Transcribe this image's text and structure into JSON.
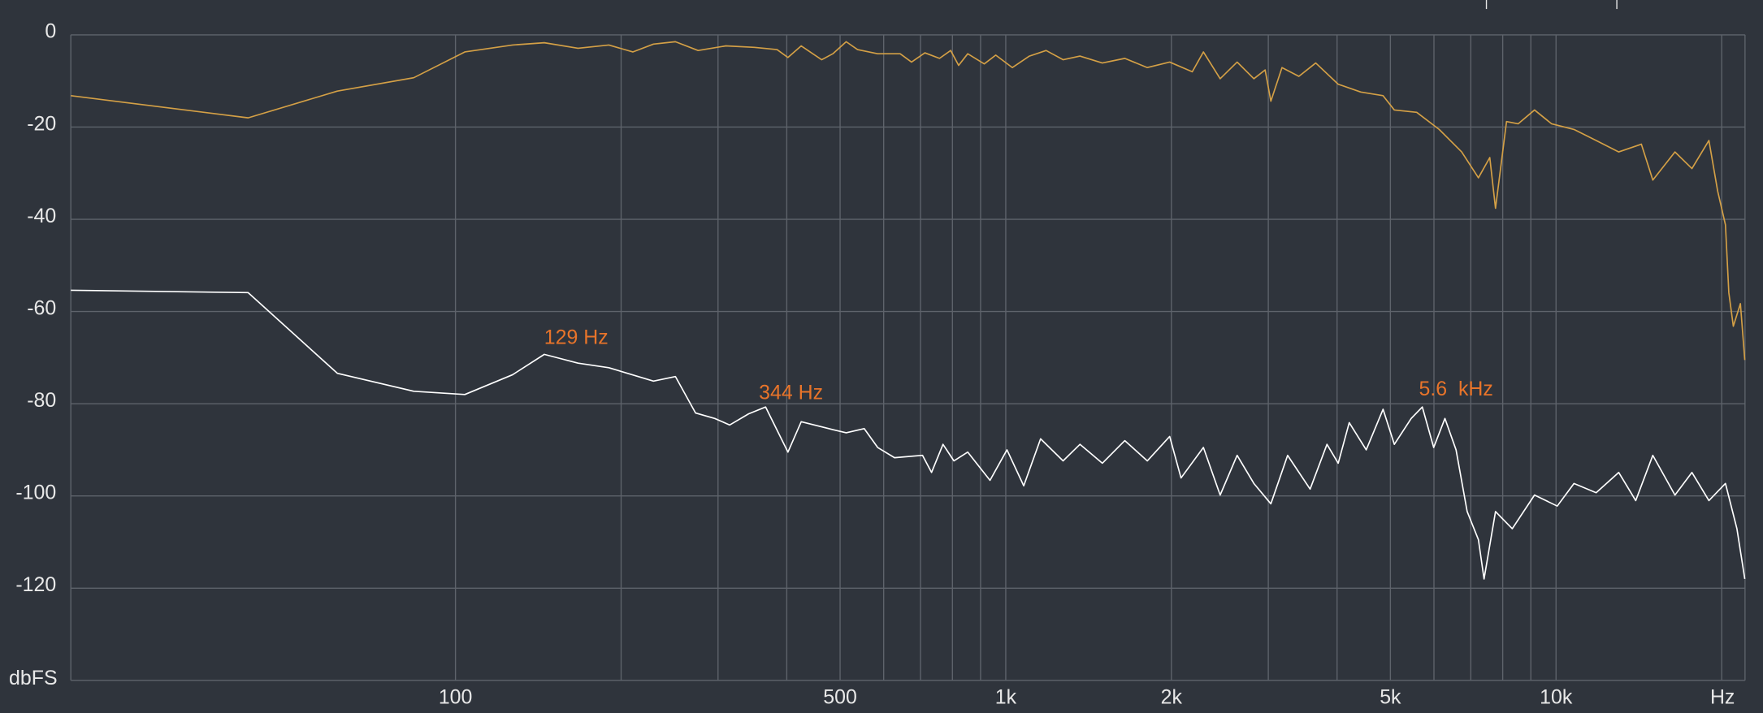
{
  "chart_data": {
    "type": "line",
    "x_log": true,
    "grid": true,
    "xlim": [
      20,
      22050
    ],
    "ylim": [
      -140,
      0
    ],
    "yticks": [
      0,
      -20,
      -40,
      -60,
      -80,
      -100,
      -120
    ],
    "xticks": [
      100,
      500,
      {
        "value": 1000,
        "label": "1k"
      },
      {
        "value": 2000,
        "label": "2k"
      },
      {
        "value": 5000,
        "label": "5k"
      },
      {
        "value": 10000,
        "label": "10k"
      }
    ],
    "x_minor_grid": [
      200,
      300,
      400,
      600,
      700,
      800,
      900,
      3000,
      4000,
      6000,
      7000,
      8000,
      9000,
      20000
    ],
    "xlabel": "Hz",
    "ylabel": "dbFS",
    "annotations": [
      "129 Hz",
      "344 Hz",
      "5.6  kHz"
    ],
    "series": [
      {
        "color": "#d4a046",
        "x": [
          20,
          42,
          61,
          84,
          104,
          127,
          145,
          167,
          190,
          210,
          229,
          251,
          276,
          310,
          349,
          384,
          402,
          425,
          463,
          485,
          513,
          538,
          585,
          643,
          674,
          713,
          758,
          794,
          821,
          853,
          914,
          959,
          1028,
          1104,
          1184,
          1271,
          1364,
          1498,
          1646,
          1808,
          1986,
          2182,
          2287,
          2453,
          2633,
          2825,
          2960,
          3032,
          3177,
          3409,
          3658,
          4019,
          4415,
          4849,
          5082,
          5583,
          6133,
          6737,
          7228,
          7577,
          7762,
          8128,
          8531,
          9141,
          9817,
          10780,
          11830,
          13000,
          14290,
          14990,
          16450,
          17660,
          18960,
          19670,
          20320,
          20610,
          21000,
          21630,
          22030
        ],
        "values": [
          -13.2,
          -18,
          -12.2,
          -9.3,
          -3.7,
          -2.2,
          -1.7,
          -2.9,
          -2.2,
          -3.7,
          -2,
          -1.5,
          -3.4,
          -2.4,
          -2.7,
          -3.2,
          -4.9,
          -2.4,
          -5.4,
          -4.1,
          -1.5,
          -3.2,
          -4.1,
          -4.1,
          -5.9,
          -3.9,
          -5.1,
          -3.4,
          -6.6,
          -4.1,
          -6.3,
          -4.4,
          -7.1,
          -4.6,
          -3.4,
          -5.4,
          -4.6,
          -6.1,
          -5.1,
          -7.1,
          -5.9,
          -8,
          -3.7,
          -9.5,
          -5.9,
          -9.5,
          -7.6,
          -14.4,
          -7.1,
          -9,
          -6.1,
          -10.7,
          -12.4,
          -13.2,
          -16.3,
          -16.8,
          -20.5,
          -25.4,
          -31,
          -26.6,
          -37.6,
          -18.8,
          -19.3,
          -16.3,
          -19.3,
          -20.5,
          -22.9,
          -25.4,
          -23.7,
          -31.5,
          -25.4,
          -29,
          -22.9,
          -33.9,
          -41.2,
          -55.9,
          -63.2,
          -58.3,
          -70.5
        ]
      },
      {
        "color": "#ffffff",
        "x": [
          20,
          42,
          61,
          84,
          104,
          127,
          145,
          167,
          190,
          229,
          251,
          273,
          296,
          315,
          341,
          366,
          402,
          425,
          485,
          513,
          553,
          585,
          628,
          706,
          733,
          769,
          805,
          853,
          936,
          1005,
          1078,
          1157,
          1271,
          1364,
          1498,
          1646,
          1808,
          1986,
          2082,
          2287,
          2453,
          2633,
          2825,
          3032,
          3252,
          3573,
          3835,
          4019,
          4209,
          4519,
          4849,
          5082,
          5454,
          5715,
          5992,
          6281,
          6582,
          6896,
          7228,
          7399,
          7762,
          8327,
          9141,
          10050,
          10780,
          11830,
          13000,
          13960,
          14990,
          16450,
          17660,
          18960,
          20320,
          21320,
          22030
        ],
        "values": [
          -55.4,
          -55.9,
          -73.4,
          -77.3,
          -78,
          -73.7,
          -69.3,
          -71.2,
          -72.2,
          -75.1,
          -74.1,
          -82,
          -83.2,
          -84.6,
          -82.2,
          -80.7,
          -90.5,
          -83.9,
          -85.6,
          -86.3,
          -85.4,
          -89.5,
          -91.7,
          -91.2,
          -94.9,
          -88.8,
          -92.4,
          -90.5,
          -96.6,
          -90,
          -97.8,
          -87.6,
          -92.4,
          -88.8,
          -92.9,
          -88,
          -92.4,
          -87.1,
          -96.1,
          -89.5,
          -99.8,
          -91.2,
          -97.3,
          -101.7,
          -91.2,
          -98.5,
          -88.8,
          -92.9,
          -84.1,
          -90,
          -81.2,
          -88.8,
          -83.2,
          -80.7,
          -89.5,
          -83.2,
          -90,
          -103.4,
          -109.5,
          -118,
          -103.4,
          -107.1,
          -99.8,
          -102.2,
          -97.3,
          -99.3,
          -94.9,
          -101,
          -91.2,
          -99.8,
          -94.9,
          -101,
          -97.3,
          -107.1,
          -118
        ]
      }
    ]
  }
}
